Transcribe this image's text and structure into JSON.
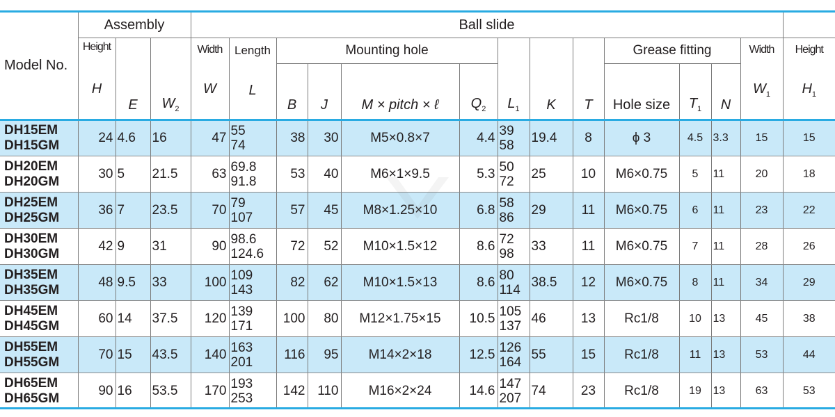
{
  "header": {
    "model_no": "Model No.",
    "assembly": "Assembly",
    "ball_slide": "Ball slide",
    "mounting_hole": "Mounting hole",
    "grease_fitting": "Grease fitting",
    "height": "Height",
    "width": "Width",
    "length": "Length",
    "width2": "Width",
    "height2": "Height",
    "sym_H": "H",
    "sym_E": "E",
    "sym_W2": "W",
    "sym_W2_sub": "2",
    "sym_W": "W",
    "sym_L": "L",
    "sym_B": "B",
    "sym_J": "J",
    "sym_M": "M × pitch × ℓ",
    "sym_Q2": "Q",
    "sym_Q2_sub": "2",
    "sym_L1": "L",
    "sym_L1_sub": "1",
    "sym_K": "K",
    "sym_T": "T",
    "hole_size": "Hole size",
    "sym_T1": "T",
    "sym_T1_sub": "1",
    "sym_N": "N",
    "sym_W1": "W",
    "sym_W1_sub": "1",
    "sym_H1": "H",
    "sym_H1_sub": "1"
  },
  "rows": [
    {
      "m1": "DH15EM",
      "m2": "DH15GM",
      "H": "24",
      "E": "4.6",
      "W2": "16",
      "W": "47",
      "L1": "55",
      "L2": "74",
      "B": "38",
      "J": "30",
      "M": "M5×0.8×7",
      "Q2": "4.4",
      "La": "39",
      "Lb": "58",
      "K": "19.4",
      "T": "8",
      "hole": "ϕ 3",
      "T1": "4.5",
      "N": "3.3",
      "W1": "15",
      "H1": "15"
    },
    {
      "m1": "DH20EM",
      "m2": "DH20GM",
      "H": "30",
      "E": "5",
      "W2": "21.5",
      "W": "63",
      "L1": "69.8",
      "L2": "91.8",
      "B": "53",
      "J": "40",
      "M": "M6×1×9.5",
      "Q2": "5.3",
      "La": "50",
      "Lb": "72",
      "K": "25",
      "T": "10",
      "hole": "M6×0.75",
      "T1": "5",
      "N": "11",
      "W1": "20",
      "H1": "18"
    },
    {
      "m1": "DH25EM",
      "m2": "DH25GM",
      "H": "36",
      "E": "7",
      "W2": "23.5",
      "W": "70",
      "L1": "79",
      "L2": "107",
      "B": "57",
      "J": "45",
      "M": "M8×1.25×10",
      "Q2": "6.8",
      "La": "58",
      "Lb": "86",
      "K": "29",
      "T": "11",
      "hole": "M6×0.75",
      "T1": "6",
      "N": "11",
      "W1": "23",
      "H1": "22"
    },
    {
      "m1": "DH30EM",
      "m2": "DH30GM",
      "H": "42",
      "E": "9",
      "W2": "31",
      "W": "90",
      "L1": "98.6",
      "L2": "124.6",
      "B": "72",
      "J": "52",
      "M": "M10×1.5×12",
      "Q2": "8.6",
      "La": "72",
      "Lb": "98",
      "K": "33",
      "T": "11",
      "hole": "M6×0.75",
      "T1": "7",
      "N": "11",
      "W1": "28",
      "H1": "26"
    },
    {
      "m1": "DH35EM",
      "m2": "DH35GM",
      "H": "48",
      "E": "9.5",
      "W2": "33",
      "W": "100",
      "L1": "109",
      "L2": "143",
      "B": "82",
      "J": "62",
      "M": "M10×1.5×13",
      "Q2": "8.6",
      "La": "80",
      "Lb": "114",
      "K": "38.5",
      "T": "12",
      "hole": "M6×0.75",
      "T1": "8",
      "N": "11",
      "W1": "34",
      "H1": "29"
    },
    {
      "m1": "DH45EM",
      "m2": "DH45GM",
      "H": "60",
      "E": "14",
      "W2": "37.5",
      "W": "120",
      "L1": "139",
      "L2": "171",
      "B": "100",
      "J": "80",
      "M": "M12×1.75×15",
      "Q2": "10.5",
      "La": "105",
      "Lb": "137",
      "K": "46",
      "T": "13",
      "hole": "Rc1/8",
      "T1": "10",
      "N": "13",
      "W1": "45",
      "H1": "38"
    },
    {
      "m1": "DH55EM",
      "m2": "DH55GM",
      "H": "70",
      "E": "15",
      "W2": "43.5",
      "W": "140",
      "L1": "163",
      "L2": "201",
      "B": "116",
      "J": "95",
      "M": "M14×2×18",
      "Q2": "12.5",
      "La": "126",
      "Lb": "164",
      "K": "55",
      "T": "15",
      "hole": "Rc1/8",
      "T1": "11",
      "N": "13",
      "W1": "53",
      "H1": "44"
    },
    {
      "m1": "DH65EM",
      "m2": "DH65GM",
      "H": "90",
      "E": "16",
      "W2": "53.5",
      "W": "170",
      "L1": "193",
      "L2": "253",
      "B": "142",
      "J": "110",
      "M": "M16×2×24",
      "Q2": "14.6",
      "La": "147",
      "Lb": "207",
      "K": "74",
      "T": "23",
      "hole": "Rc1/8",
      "T1": "19",
      "N": "13",
      "W1": "63",
      "H1": "53"
    }
  ],
  "colors": {
    "accent": "#29abe2",
    "row_highlight": "#c9e9f9"
  }
}
